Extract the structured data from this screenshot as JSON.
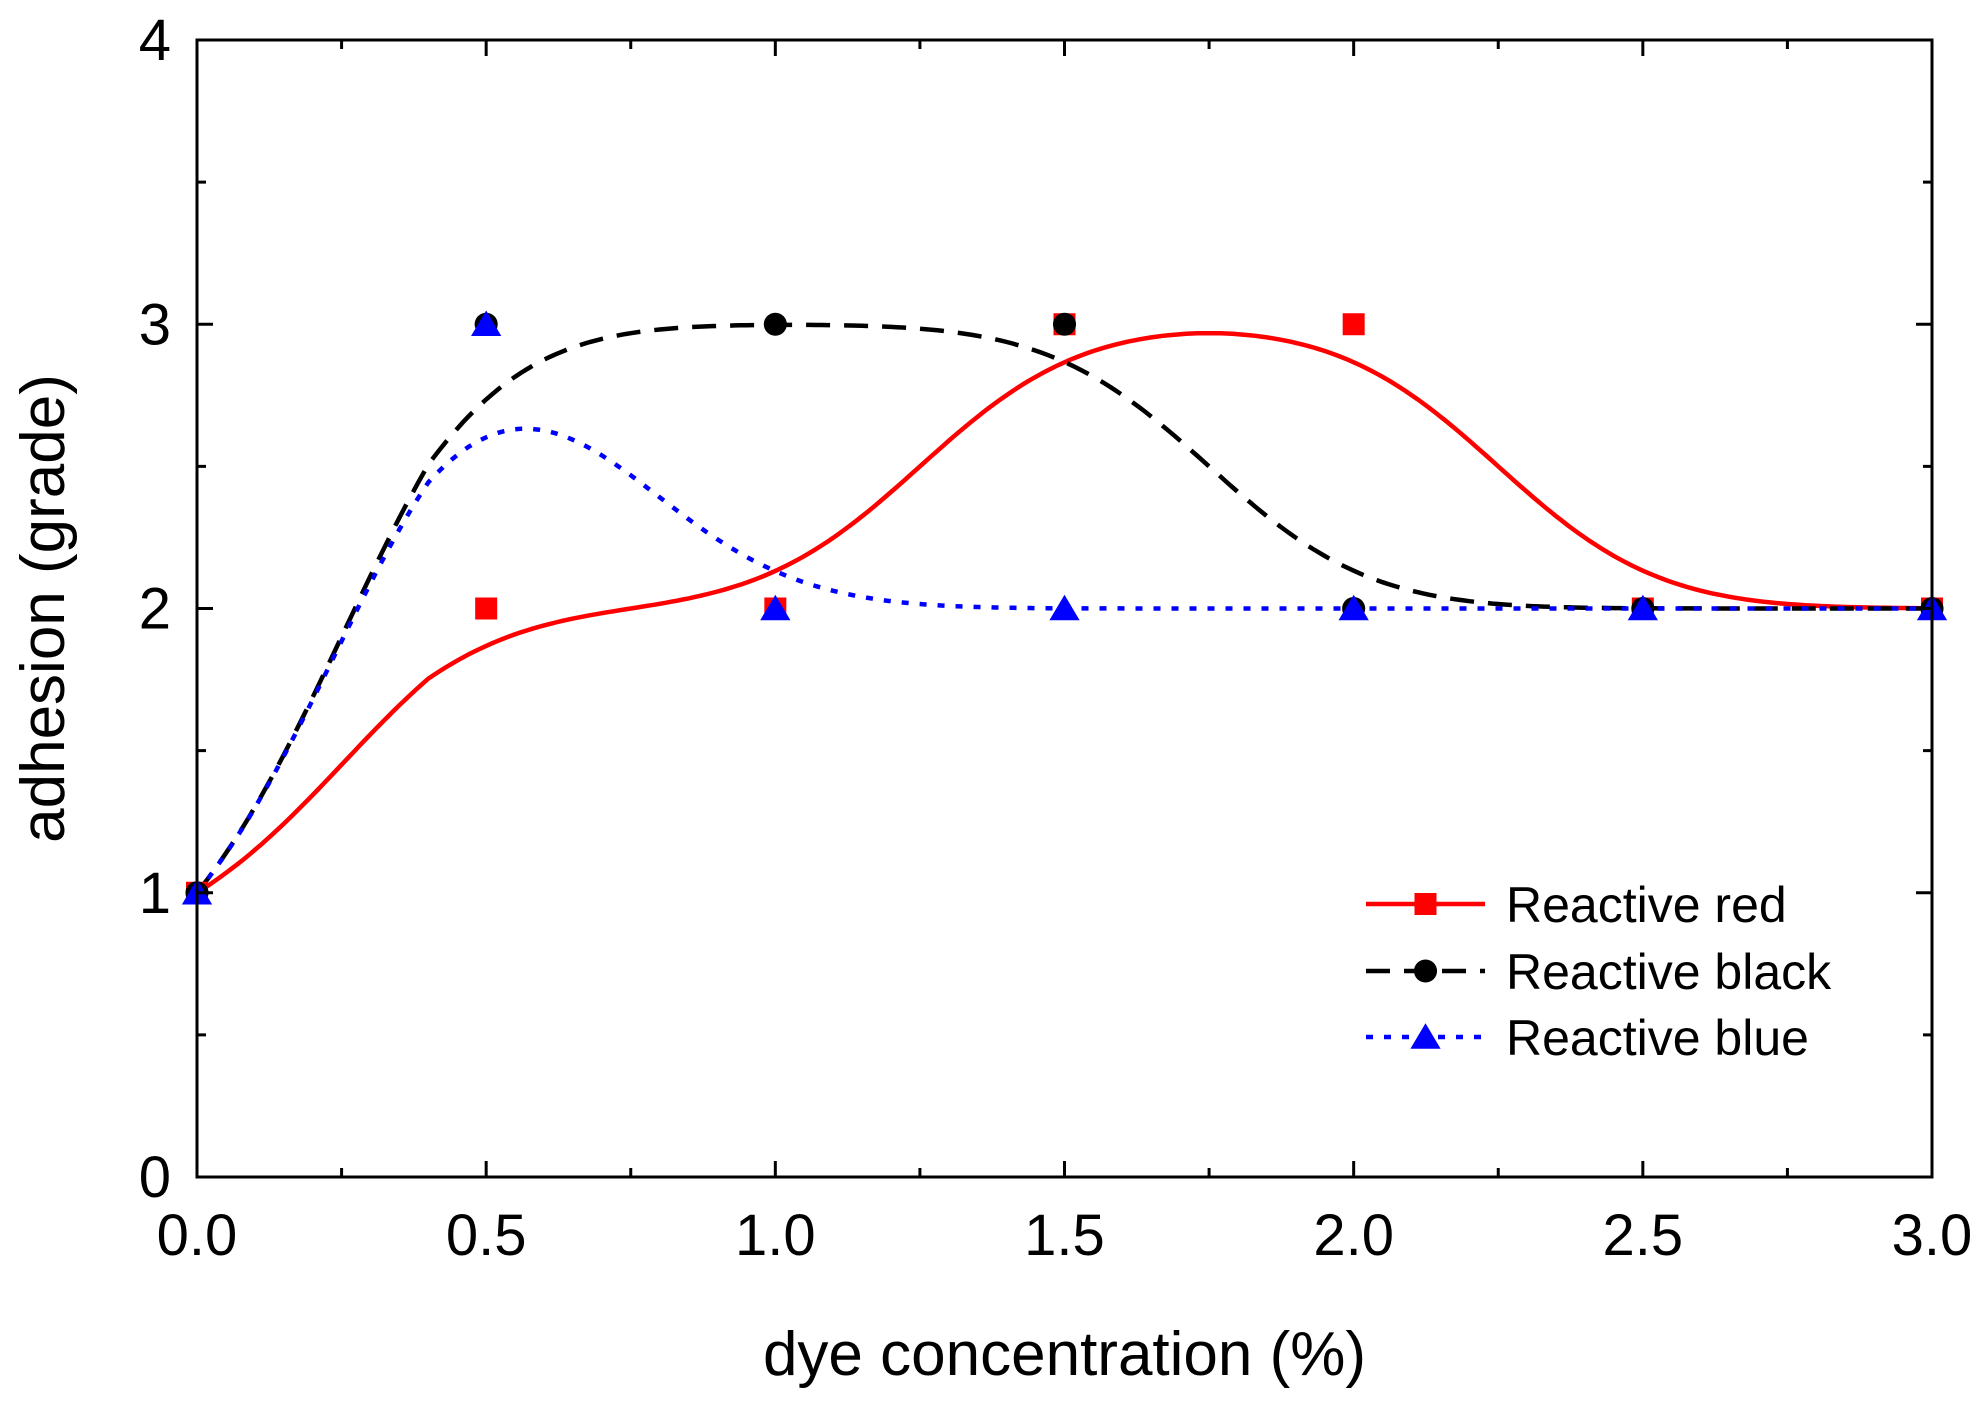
{
  "chart_data": {
    "type": "scatter",
    "xlabel": "dye concentration (%)",
    "ylabel": "adhesion (grade)",
    "xlim": [
      0,
      3
    ],
    "ylim": [
      0,
      4
    ],
    "x_ticks": [
      0,
      0.5,
      1,
      1.5,
      2,
      2.5,
      3
    ],
    "x_tick_labels": [
      "0.0",
      "0.5",
      "1.0",
      "1.5",
      "2.0",
      "2.5",
      "3.0"
    ],
    "y_ticks": [
      0,
      1,
      2,
      3,
      4
    ],
    "y_tick_labels": [
      "0",
      "1",
      "2",
      "3",
      "4"
    ],
    "grid": false,
    "legend_position": "bottom-right",
    "series": [
      {
        "name": "Reactive red",
        "color": "#ff0000",
        "marker": "square",
        "line_style": "solid",
        "x": [
          0,
          0.5,
          1,
          1.5,
          2,
          2.5,
          3
        ],
        "y": [
          1,
          2,
          2,
          3,
          3,
          2,
          2
        ]
      },
      {
        "name": "Reactive black",
        "color": "#000000",
        "marker": "circle",
        "line_style": "dashed",
        "x": [
          0,
          0.5,
          1,
          1.5,
          2,
          2.5,
          3
        ],
        "y": [
          1,
          3,
          3,
          3,
          2,
          2,
          2
        ]
      },
      {
        "name": "Reactive blue",
        "color": "#0000ff",
        "marker": "triangle",
        "line_style": "dotted",
        "x": [
          0,
          0.5,
          1,
          1.5,
          2,
          2.5,
          3
        ],
        "y": [
          1,
          3,
          2,
          2,
          2,
          2,
          2
        ]
      }
    ]
  }
}
